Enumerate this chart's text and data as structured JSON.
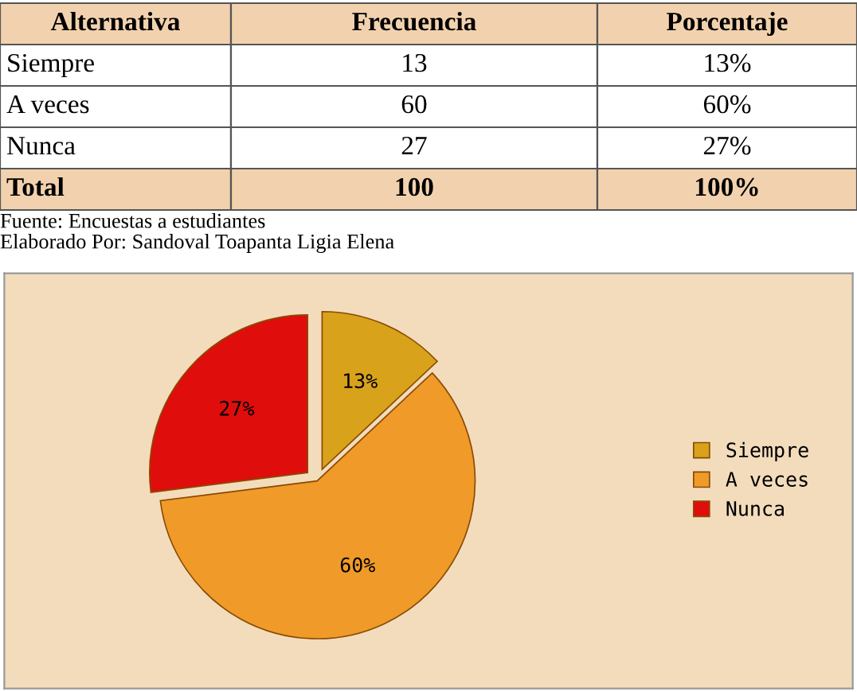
{
  "chart_data": {
    "type": "pie",
    "categories": [
      "Siempre",
      "A veces",
      "Nunca"
    ],
    "values": [
      13,
      60,
      27
    ],
    "colors": [
      "#d9a21b",
      "#f09a2a",
      "#e00d0d"
    ],
    "value_labels": [
      "13%",
      "60%",
      "27%"
    ],
    "legend": "right",
    "annotations": [
      "Alternativa",
      "Frecuencia",
      "Porcentaje",
      "13",
      "60",
      "27",
      "Total",
      "100",
      "100%",
      "Fuente: Encuestas a estudiantes",
      "Elaborado Por: Sandoval Toapanta Ligia Elena"
    ]
  }
}
